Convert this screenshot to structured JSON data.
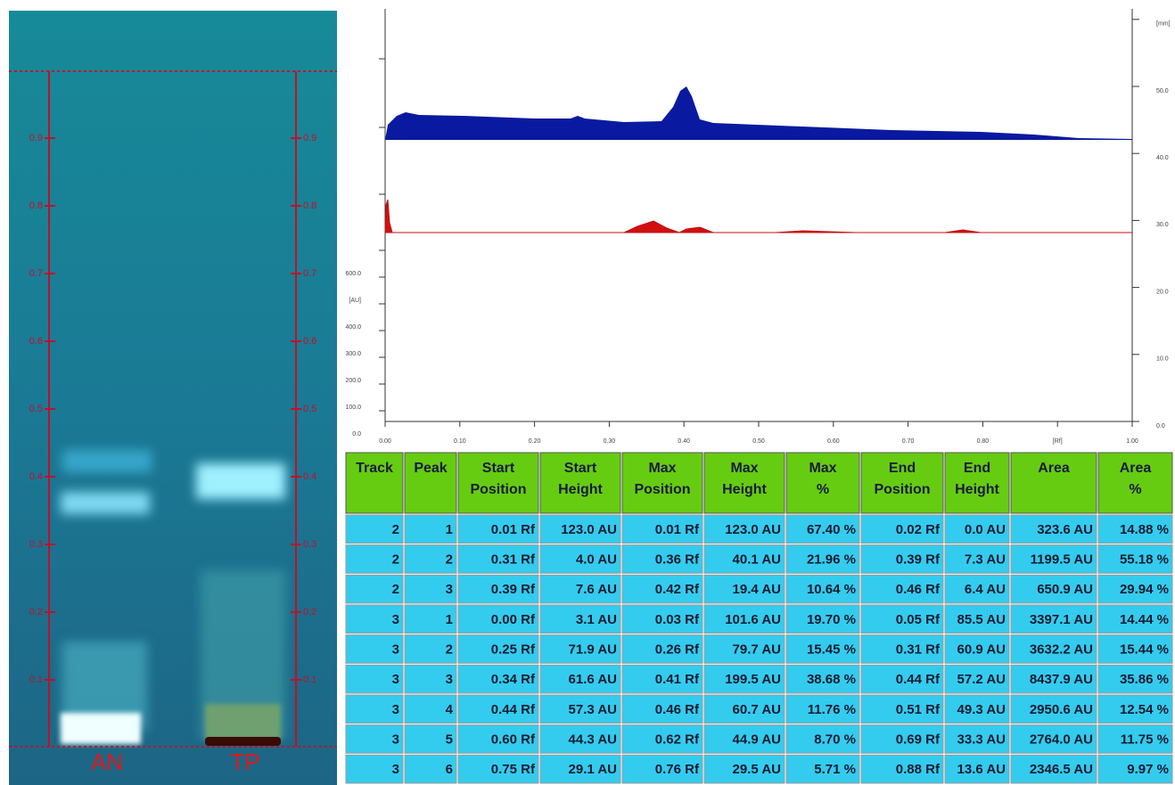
{
  "plate": {
    "tick_labels": [
      "0.9",
      "0.8",
      "0.7",
      "0.6",
      "0.5",
      "0.4",
      "0.3",
      "0.2",
      "0.1"
    ],
    "lanes": [
      "AN",
      "TP"
    ]
  },
  "densitogram": {
    "x_labels": [
      "0.00",
      "0.10",
      "0.20",
      "0.30",
      "0.40",
      "0.50",
      "0.60",
      "0.70",
      "0.80",
      "[Rf]",
      "1.00"
    ],
    "left_labels": [
      "0.0",
      "100.0",
      "200.0",
      "300.0",
      "400.0",
      "[AU]",
      "600.0"
    ],
    "right_labels": [
      "0.0",
      "10.0",
      "20.0",
      "30.0",
      "40.0",
      "50.0",
      "[mm]"
    ]
  },
  "table": {
    "header": [
      [
        "Track"
      ],
      [
        "Peak"
      ],
      [
        "Start",
        "Position"
      ],
      [
        "Start",
        "Height"
      ],
      [
        "Max",
        "Position"
      ],
      [
        "Max",
        "Height"
      ],
      [
        "Max",
        "%"
      ],
      [
        "End",
        "Position"
      ],
      [
        "End",
        "Height"
      ],
      [
        "Area"
      ],
      [
        "Area",
        "%"
      ]
    ],
    "rows": [
      [
        "2",
        "1",
        "0.01 Rf",
        "123.0 AU",
        "0.01 Rf",
        "123.0 AU",
        "67.40 %",
        "0.02 Rf",
        "0.0 AU",
        "323.6 AU",
        "14.88 %"
      ],
      [
        "2",
        "2",
        "0.31 Rf",
        "4.0 AU",
        "0.36 Rf",
        "40.1 AU",
        "21.96 %",
        "0.39 Rf",
        "7.3 AU",
        "1199.5 AU",
        "55.18 %"
      ],
      [
        "2",
        "3",
        "0.39 Rf",
        "7.6 AU",
        "0.42 Rf",
        "19.4 AU",
        "10.64 %",
        "0.46 Rf",
        "6.4 AU",
        "650.9 AU",
        "29.94 %"
      ],
      [
        "3",
        "1",
        "0.00 Rf",
        "3.1 AU",
        "0.03 Rf",
        "101.6 AU",
        "19.70 %",
        "0.05 Rf",
        "85.5 AU",
        "3397.1 AU",
        "14.44 %"
      ],
      [
        "3",
        "2",
        "0.25 Rf",
        "71.9 AU",
        "0.26 Rf",
        "79.7 AU",
        "15.45 %",
        "0.31 Rf",
        "60.9 AU",
        "3632.2 AU",
        "15.44 %"
      ],
      [
        "3",
        "3",
        "0.34 Rf",
        "61.6 AU",
        "0.41 Rf",
        "199.5 AU",
        "38.68 %",
        "0.44 Rf",
        "57.2 AU",
        "8437.9 AU",
        "35.86 %"
      ],
      [
        "3",
        "4",
        "0.44 Rf",
        "57.3 AU",
        "0.46 Rf",
        "60.7 AU",
        "11.76 %",
        "0.51 Rf",
        "49.3 AU",
        "2950.6 AU",
        "12.54 %"
      ],
      [
        "3",
        "5",
        "0.60 Rf",
        "44.3 AU",
        "0.62 Rf",
        "44.9 AU",
        "8.70 %",
        "0.69 Rf",
        "33.3 AU",
        "2764.0 AU",
        "11.75 %"
      ],
      [
        "3",
        "6",
        "0.75 Rf",
        "29.1 AU",
        "0.76 Rf",
        "29.5 AU",
        "5.71 %",
        "0.88 Rf",
        "13.6 AU",
        "2346.5 AU",
        "9.97 %"
      ]
    ]
  }
}
